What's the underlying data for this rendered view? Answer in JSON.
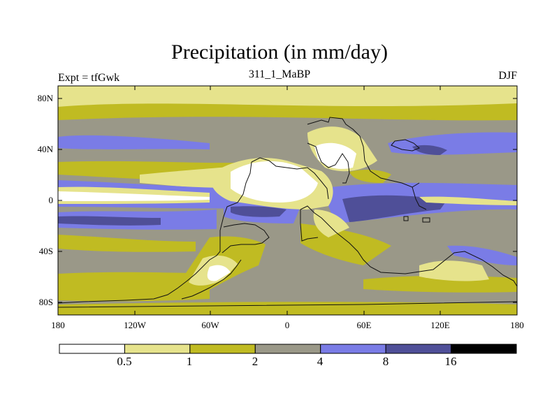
{
  "chart_data": {
    "type": "heatmap",
    "title": "Precipitation (in mm/day)",
    "subtitle_left": "Expt = tfGwk",
    "subtitle_center": "311_1_MaBP",
    "subtitle_right": "DJF",
    "x_ticks": [
      "180",
      "120W",
      "60W",
      "0",
      "60E",
      "120E",
      "180"
    ],
    "y_ticks": [
      "80N",
      "40N",
      "0",
      "40S",
      "80S"
    ],
    "xlim": [
      -180,
      180
    ],
    "ylim": [
      -90,
      90
    ],
    "colorbar": {
      "levels": [
        "0.5",
        "1",
        "2",
        "4",
        "8",
        "16"
      ],
      "bins": [
        {
          "range": "<0.5",
          "color": "#ffffff"
        },
        {
          "range": "0.5-1",
          "color": "#e6e38c"
        },
        {
          "range": "1-2",
          "color": "#c0bb22"
        },
        {
          "range": "2-4",
          "color": "#9a9888"
        },
        {
          "range": "4-8",
          "color": "#7a7ce6"
        },
        {
          "range": "8-16",
          "color": "#4f4f98"
        },
        {
          "range": ">16",
          "color": "#000000"
        }
      ]
    }
  }
}
